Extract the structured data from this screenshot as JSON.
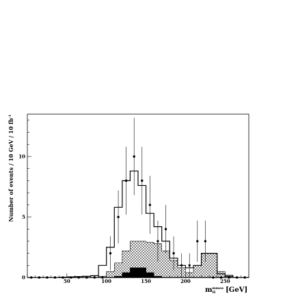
{
  "chart_data": {
    "type": "histogram",
    "ylabel": "Number of events / 10 GeV / 10 fb",
    "ylabel_sup": "-1",
    "xlabel_main": "m",
    "xlabel_sub": "H",
    "xlabel_sup": "mmos",
    "xlabel_unit": "[GeV]",
    "xlim": [
      0,
      280
    ],
    "ylim": [
      0,
      13.5
    ],
    "x_ticks": [
      {
        "value": 50,
        "label": "50"
      },
      {
        "value": 100,
        "label": "100"
      },
      {
        "value": 150,
        "label": "150"
      },
      {
        "value": 200,
        "label": "200"
      },
      {
        "value": 250,
        "label": "250"
      }
    ],
    "y_ticks": [
      {
        "value": 0,
        "label": "0"
      },
      {
        "value": 5,
        "label": "5"
      },
      {
        "value": 10,
        "label": "10"
      }
    ],
    "bin_edges": [
      0,
      10,
      20,
      30,
      40,
      50,
      60,
      70,
      80,
      90,
      100,
      110,
      120,
      130,
      140,
      150,
      160,
      170,
      180,
      190,
      200,
      210,
      220,
      230,
      240,
      250,
      260,
      270,
      280
    ],
    "series": [
      {
        "style": "open-histogram",
        "values": [
          0,
          0,
          0,
          0,
          0.02,
          0.05,
          0.08,
          0.1,
          0.15,
          1.0,
          2.5,
          5.8,
          8.0,
          8.8,
          7.6,
          5.3,
          4.2,
          3.0,
          1.6,
          1.0,
          0.8,
          1.0,
          2.0,
          2.0,
          0.3,
          0.1,
          0,
          0
        ]
      },
      {
        "style": "hatched",
        "values": [
          0,
          0,
          0,
          0,
          0,
          0,
          0,
          0,
          0,
          0.1,
          0.5,
          1.2,
          2.2,
          3.0,
          3.0,
          2.9,
          2.8,
          2.2,
          1.4,
          0.8,
          0.4,
          1.0,
          2.0,
          2.0,
          0.5,
          0.2,
          0,
          0
        ]
      },
      {
        "style": "filled",
        "values": [
          0,
          0,
          0,
          0,
          0,
          0,
          0,
          0,
          0,
          0,
          0,
          0.1,
          0.4,
          0.8,
          0.8,
          0.4,
          0.1,
          0,
          0,
          0,
          0,
          0,
          0,
          0,
          0,
          0,
          0,
          0
        ]
      }
    ],
    "points": [
      {
        "x": 5,
        "y": 0
      },
      {
        "x": 15,
        "y": 0
      },
      {
        "x": 25,
        "y": 0
      },
      {
        "x": 35,
        "y": 0
      },
      {
        "x": 45,
        "y": 0
      },
      {
        "x": 55,
        "y": 0
      },
      {
        "x": 65,
        "y": 0
      },
      {
        "x": 75,
        "y": 0
      },
      {
        "x": 85,
        "y": 0
      },
      {
        "x": 95,
        "y": 0
      },
      {
        "x": 105,
        "y": 2.0,
        "err": 1.4
      },
      {
        "x": 115,
        "y": 5.0,
        "err": 2.2
      },
      {
        "x": 125,
        "y": 8.0,
        "err": 2.8
      },
      {
        "x": 135,
        "y": 10.0,
        "err": 3.2
      },
      {
        "x": 145,
        "y": 8.0,
        "err": 2.8
      },
      {
        "x": 155,
        "y": 6.0,
        "err": 2.4
      },
      {
        "x": 165,
        "y": 3.0,
        "err": 1.7
      },
      {
        "x": 175,
        "y": 4.0,
        "err": 2.0
      },
      {
        "x": 185,
        "y": 2.0,
        "err": 1.4
      },
      {
        "x": 195,
        "y": 1.0,
        "err": 1.0
      },
      {
        "x": 205,
        "y": 1.0,
        "err": 1.0
      },
      {
        "x": 215,
        "y": 3.0,
        "err": 1.7
      },
      {
        "x": 225,
        "y": 3.0,
        "err": 1.7
      },
      {
        "x": 235,
        "y": 0
      },
      {
        "x": 245,
        "y": 0
      },
      {
        "x": 255,
        "y": 0
      },
      {
        "x": 265,
        "y": 0
      },
      {
        "x": 275,
        "y": 0
      }
    ]
  }
}
